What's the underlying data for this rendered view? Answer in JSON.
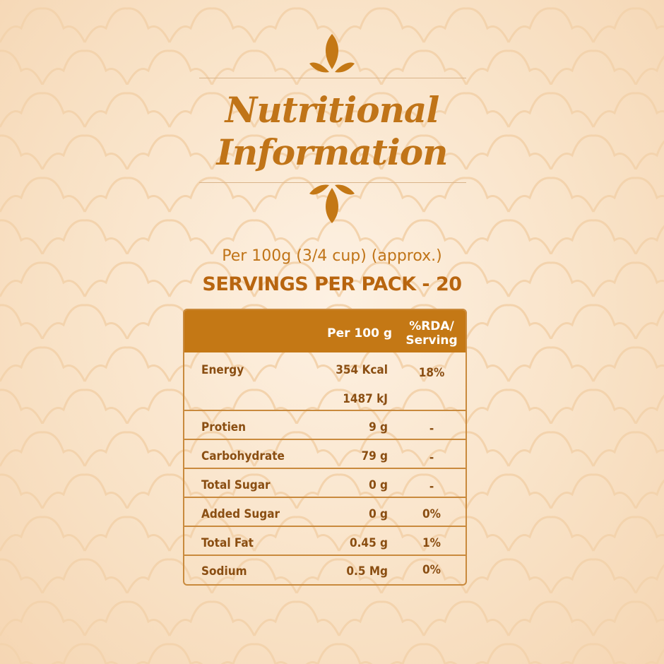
{
  "heading": {
    "line1": "Nutritional",
    "line2": "Information"
  },
  "per_serving": "Per 100g (3/4 cup) (approx.)",
  "servings_per_pack": "SERVINGS PER PACK - 20",
  "table": {
    "header": {
      "name": "",
      "per100": "Per 100 g",
      "rda_line1": "%RDA/",
      "rda_line2": "Serving"
    },
    "rows": [
      {
        "name": "Energy",
        "value": "354 Kcal",
        "value2": "1487 kJ",
        "rda": "18%"
      },
      {
        "name": "Protien",
        "value": "9 g",
        "rda": "-"
      },
      {
        "name": "Carbohydrate",
        "value": "79 g",
        "rda": "-"
      },
      {
        "name": "Total Sugar",
        "value": "0 g",
        "rda": "-"
      },
      {
        "name": "Added Sugar",
        "value": "0 g",
        "rda": "0%"
      },
      {
        "name": "Total Fat",
        "value": "0.45 g",
        "rda": "1%"
      },
      {
        "name": "Sodium",
        "value": "0.5 Mg",
        "rda": "0%"
      }
    ]
  },
  "colors": {
    "accent": "#c47815",
    "text": "#8a4e12",
    "background": "#fbe9d4"
  },
  "icons": {
    "top_ornament": "leaf-ornament-icon",
    "bottom_ornament": "leaf-ornament-icon"
  }
}
